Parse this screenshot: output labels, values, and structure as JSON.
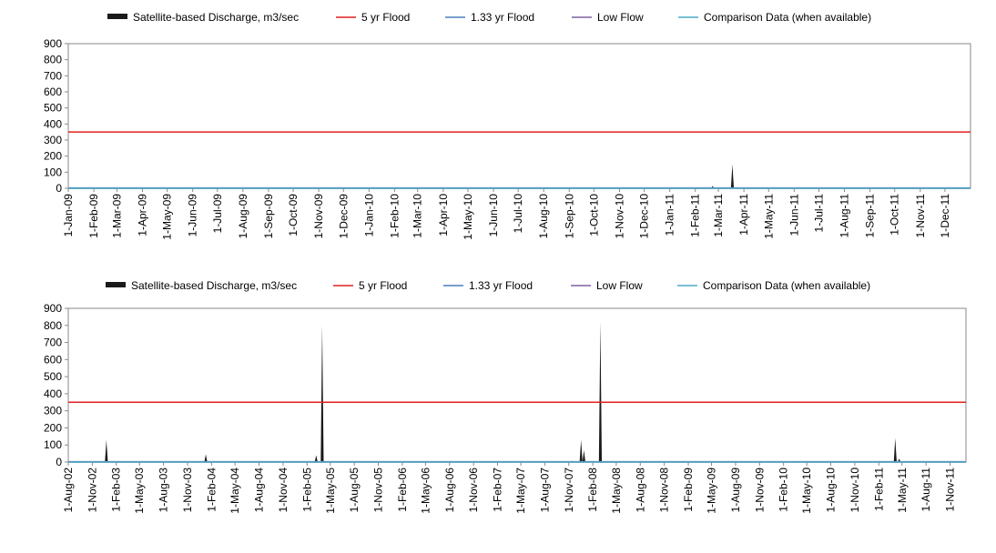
{
  "legend": {
    "items": [
      {
        "label": "Satellite-based Discharge, m3/sec",
        "color": "#1a1a1a",
        "style": "bar"
      },
      {
        "label": "5 yr Flood",
        "color": "#e02020",
        "style": "line"
      },
      {
        "label": "1.33 yr Flood",
        "color": "#4a7ebb",
        "style": "line"
      },
      {
        "label": "Low Flow",
        "color": "#7d60a0",
        "style": "line"
      },
      {
        "label": "Comparison Data (when available)",
        "color": "#4bacc6",
        "style": "line"
      }
    ]
  },
  "chart_data": [
    {
      "type": "area",
      "ylim": [
        0,
        900
      ],
      "y_ticks": [
        "0",
        "100",
        "200",
        "300",
        "400",
        "500",
        "600",
        "700",
        "800",
        "900"
      ],
      "x_ticks": [
        "1-Jan-09",
        "1-Feb-09",
        "1-Mar-09",
        "1-Apr-09",
        "1-May-09",
        "1-Jun-09",
        "1-Jul-09",
        "1-Aug-09",
        "1-Sep-09",
        "1-Oct-09",
        "1-Nov-09",
        "1-Dec-09",
        "1-Jan-10",
        "1-Feb-10",
        "1-Mar-10",
        "1-Apr-10",
        "1-May-10",
        "1-Jun-10",
        "1-Jul-10",
        "1-Aug-10",
        "1-Sep-10",
        "1-Oct-10",
        "1-Nov-10",
        "1-Dec-10",
        "1-Jan-11",
        "1-Feb-11",
        "1-Mar-11",
        "1-Apr-11",
        "1-May-11",
        "1-Jun-11",
        "1-Jul-11",
        "1-Aug-11",
        "1-Sep-11",
        "1-Oct-11",
        "1-Nov-11",
        "1-Dec-11"
      ],
      "x_domain": [
        "2009-01-01",
        "2012-01-01"
      ],
      "series": [
        {
          "name": "Satellite-based Discharge, m3/sec",
          "points": [
            [
              "2011-02-22",
              15
            ],
            [
              "2011-03-18",
              150
            ]
          ]
        },
        {
          "name": "5 yr Flood",
          "value": 350
        },
        {
          "name": "1.33 yr Flood",
          "value": 2
        },
        {
          "name": "Low Flow",
          "value": 0
        },
        {
          "name": "Comparison Data (when available)",
          "value": 0
        }
      ]
    },
    {
      "type": "area",
      "ylim": [
        0,
        900
      ],
      "y_ticks": [
        "0",
        "100",
        "200",
        "300",
        "400",
        "500",
        "600",
        "700",
        "800",
        "900"
      ],
      "x_ticks": [
        "1-Aug-02",
        "1-Nov-02",
        "1-Feb-03",
        "1-May-03",
        "1-Aug-03",
        "1-Nov-03",
        "1-Feb-04",
        "1-May-04",
        "1-Aug-04",
        "1-Nov-04",
        "1-Feb-05",
        "1-May-05",
        "1-Aug-05",
        "1-Nov-05",
        "1-Feb-06",
        "1-May-06",
        "1-Aug-06",
        "1-Nov-06",
        "1-Feb-07",
        "1-May-07",
        "1-Aug-07",
        "1-Nov-07",
        "1-Feb-08",
        "1-May-08",
        "1-Aug-08",
        "1-Nov-08",
        "1-Feb-09",
        "1-May-09",
        "1-Aug-09",
        "1-Nov-09",
        "1-Feb-10",
        "1-May-10",
        "1-Aug-10",
        "1-Nov-10",
        "1-Feb-11",
        "1-May-11",
        "1-Aug-11",
        "1-Nov-11"
      ],
      "x_domain": [
        "2002-08-01",
        "2012-01-01"
      ],
      "series": [
        {
          "name": "Satellite-based Discharge, m3/sec",
          "points": [
            [
              "2002-12-25",
              130
            ],
            [
              "2004-01-10",
              45
            ],
            [
              "2005-03-08",
              40
            ],
            [
              "2005-03-31",
              800
            ],
            [
              "2007-12-18",
              130
            ],
            [
              "2007-12-29",
              70
            ],
            [
              "2008-03-01",
              820
            ],
            [
              "2011-04-05",
              140
            ],
            [
              "2011-04-20",
              20
            ]
          ]
        },
        {
          "name": "5 yr Flood",
          "value": 350
        },
        {
          "name": "1.33 yr Flood",
          "value": 2
        },
        {
          "name": "Low Flow",
          "value": 0
        },
        {
          "name": "Comparison Data (when available)",
          "value": 0
        }
      ]
    }
  ]
}
